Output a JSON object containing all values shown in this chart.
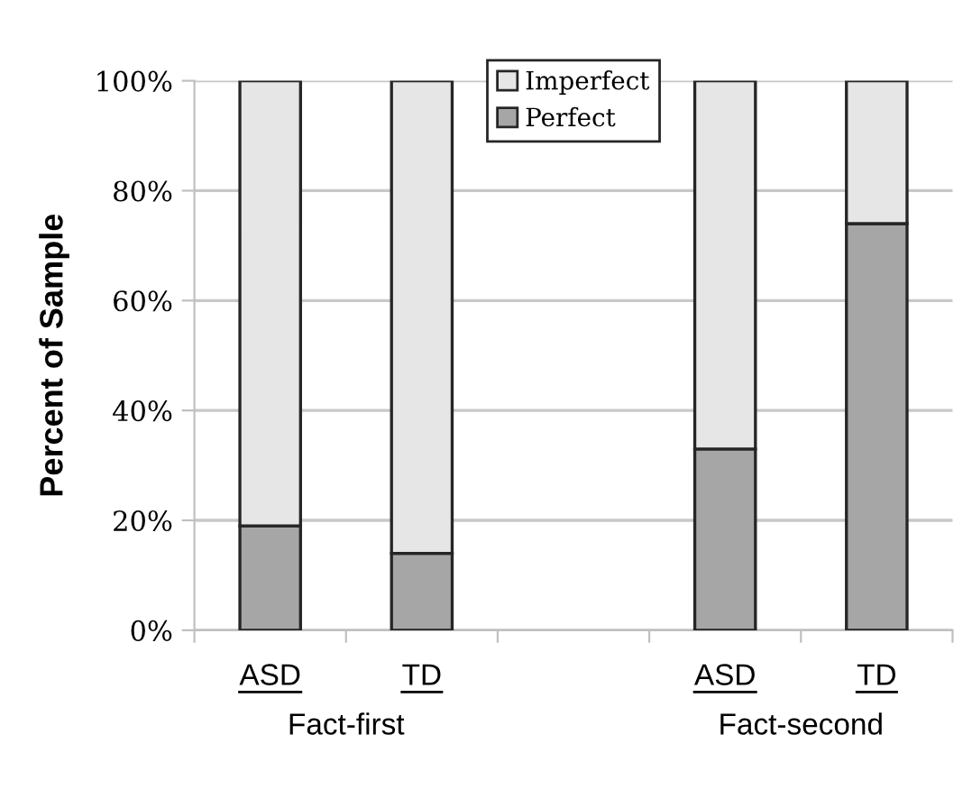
{
  "chart_data": {
    "type": "bar",
    "stacked": true,
    "ylabel": "Percent of Sample",
    "categories": [
      "ASD",
      "TD",
      null,
      "ASD",
      "TD"
    ],
    "series": [
      {
        "name": "Perfect",
        "color": "#a6a6a6",
        "values": [
          19,
          14,
          null,
          33,
          74
        ]
      },
      {
        "name": "Imperfect",
        "color": "#e6e6e6",
        "values": [
          81,
          86,
          null,
          67,
          26
        ]
      }
    ],
    "ylim": [
      0,
      100
    ],
    "yticks": [
      {
        "value": 0,
        "label": "0%"
      },
      {
        "value": 20,
        "label": "20%"
      },
      {
        "value": 40,
        "label": "40%"
      },
      {
        "value": 60,
        "label": "60%"
      },
      {
        "value": 80,
        "label": "80%"
      },
      {
        "value": 100,
        "label": "100%"
      }
    ],
    "grid": "y",
    "legend": "top",
    "annotations": [
      "Fact-first",
      "Fact-second"
    ]
  }
}
